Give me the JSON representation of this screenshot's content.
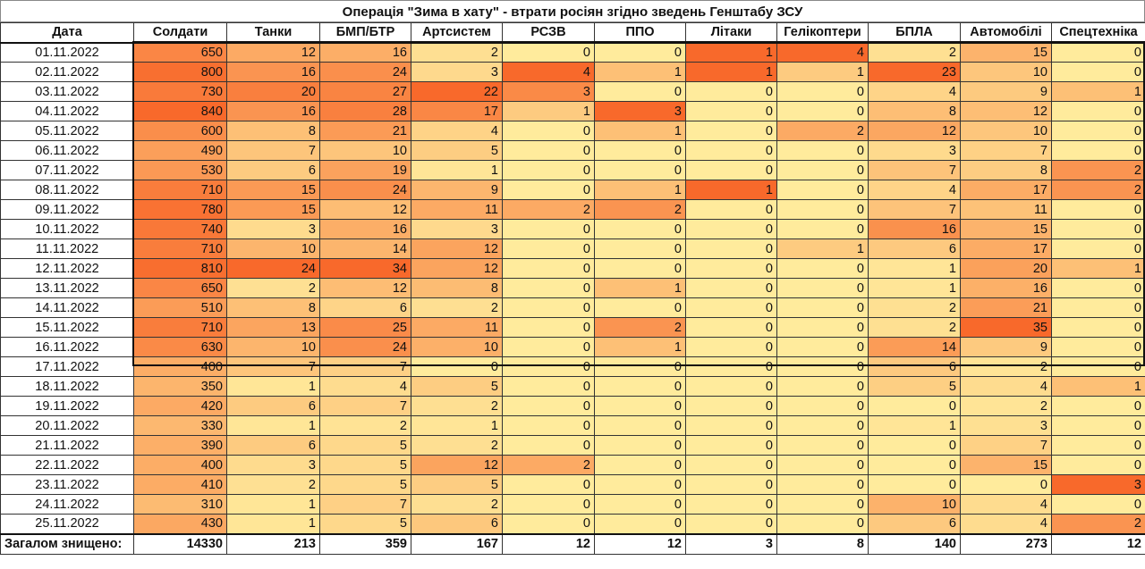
{
  "title": "Операція \"Зима в хату\" - втрати росіян згідно зведень Генштабу ЗСУ",
  "columns": [
    "Дата",
    "Солдати",
    "Танки",
    "БМП/БТР",
    "Артсистем",
    "РСЗВ",
    "ППО",
    "Літаки",
    "Гелікоптери",
    "БПЛА",
    "Автомобілі",
    "Спецтехніка"
  ],
  "colors": {
    "low": "#FFEB9C",
    "high": "#F8692B"
  },
  "rows": [
    [
      "01.11.2022",
      650,
      12,
      16,
      2,
      0,
      0,
      1,
      4,
      2,
      15,
      0
    ],
    [
      "02.11.2022",
      800,
      16,
      24,
      3,
      4,
      1,
      1,
      1,
      23,
      10,
      0
    ],
    [
      "03.11.2022",
      730,
      20,
      27,
      22,
      3,
      0,
      0,
      0,
      4,
      9,
      1
    ],
    [
      "04.11.2022",
      840,
      16,
      28,
      17,
      1,
      3,
      0,
      0,
      8,
      12,
      0
    ],
    [
      "05.11.2022",
      600,
      8,
      21,
      4,
      0,
      1,
      0,
      2,
      12,
      10,
      0
    ],
    [
      "06.11.2022",
      490,
      7,
      10,
      5,
      0,
      0,
      0,
      0,
      3,
      7,
      0
    ],
    [
      "07.11.2022",
      530,
      6,
      19,
      1,
      0,
      0,
      0,
      0,
      7,
      8,
      2
    ],
    [
      "08.11.2022",
      710,
      15,
      24,
      9,
      0,
      1,
      1,
      0,
      4,
      17,
      2
    ],
    [
      "09.11.2022",
      780,
      15,
      12,
      11,
      2,
      2,
      0,
      0,
      7,
      11,
      0
    ],
    [
      "10.11.2022",
      740,
      3,
      16,
      3,
      0,
      0,
      0,
      0,
      16,
      15,
      0
    ],
    [
      "11.11.2022",
      710,
      10,
      14,
      12,
      0,
      0,
      0,
      1,
      6,
      17,
      0
    ],
    [
      "12.11.2022",
      810,
      24,
      34,
      12,
      0,
      0,
      0,
      0,
      1,
      20,
      1
    ],
    [
      "13.11.2022",
      650,
      2,
      12,
      8,
      0,
      1,
      0,
      0,
      1,
      16,
      0
    ],
    [
      "14.11.2022",
      510,
      8,
      6,
      2,
      0,
      0,
      0,
      0,
      2,
      21,
      0
    ],
    [
      "15.11.2022",
      710,
      13,
      25,
      11,
      0,
      2,
      0,
      0,
      2,
      35,
      0
    ],
    [
      "16.11.2022",
      630,
      10,
      24,
      10,
      0,
      1,
      0,
      0,
      14,
      9,
      0
    ],
    [
      "17.11.2022",
      400,
      7,
      7,
      0,
      0,
      0,
      0,
      0,
      6,
      2,
      0
    ],
    [
      "18.11.2022",
      350,
      1,
      4,
      5,
      0,
      0,
      0,
      0,
      5,
      4,
      1
    ],
    [
      "19.11.2022",
      420,
      6,
      7,
      2,
      0,
      0,
      0,
      0,
      0,
      2,
      0
    ],
    [
      "20.11.2022",
      330,
      1,
      2,
      1,
      0,
      0,
      0,
      0,
      1,
      3,
      0
    ],
    [
      "21.11.2022",
      390,
      6,
      5,
      2,
      0,
      0,
      0,
      0,
      0,
      7,
      0
    ],
    [
      "22.11.2022",
      400,
      3,
      5,
      12,
      2,
      0,
      0,
      0,
      0,
      15,
      0
    ],
    [
      "23.11.2022",
      410,
      2,
      5,
      5,
      0,
      0,
      0,
      0,
      0,
      0,
      3
    ],
    [
      "24.11.2022",
      310,
      1,
      7,
      2,
      0,
      0,
      0,
      0,
      10,
      4,
      0
    ],
    [
      "25.11.2022",
      430,
      1,
      5,
      6,
      0,
      0,
      0,
      0,
      6,
      4,
      2
    ]
  ],
  "total": [
    "Загалом знищено:",
    14330,
    213,
    359,
    167,
    12,
    12,
    3,
    8,
    140,
    273,
    12
  ]
}
